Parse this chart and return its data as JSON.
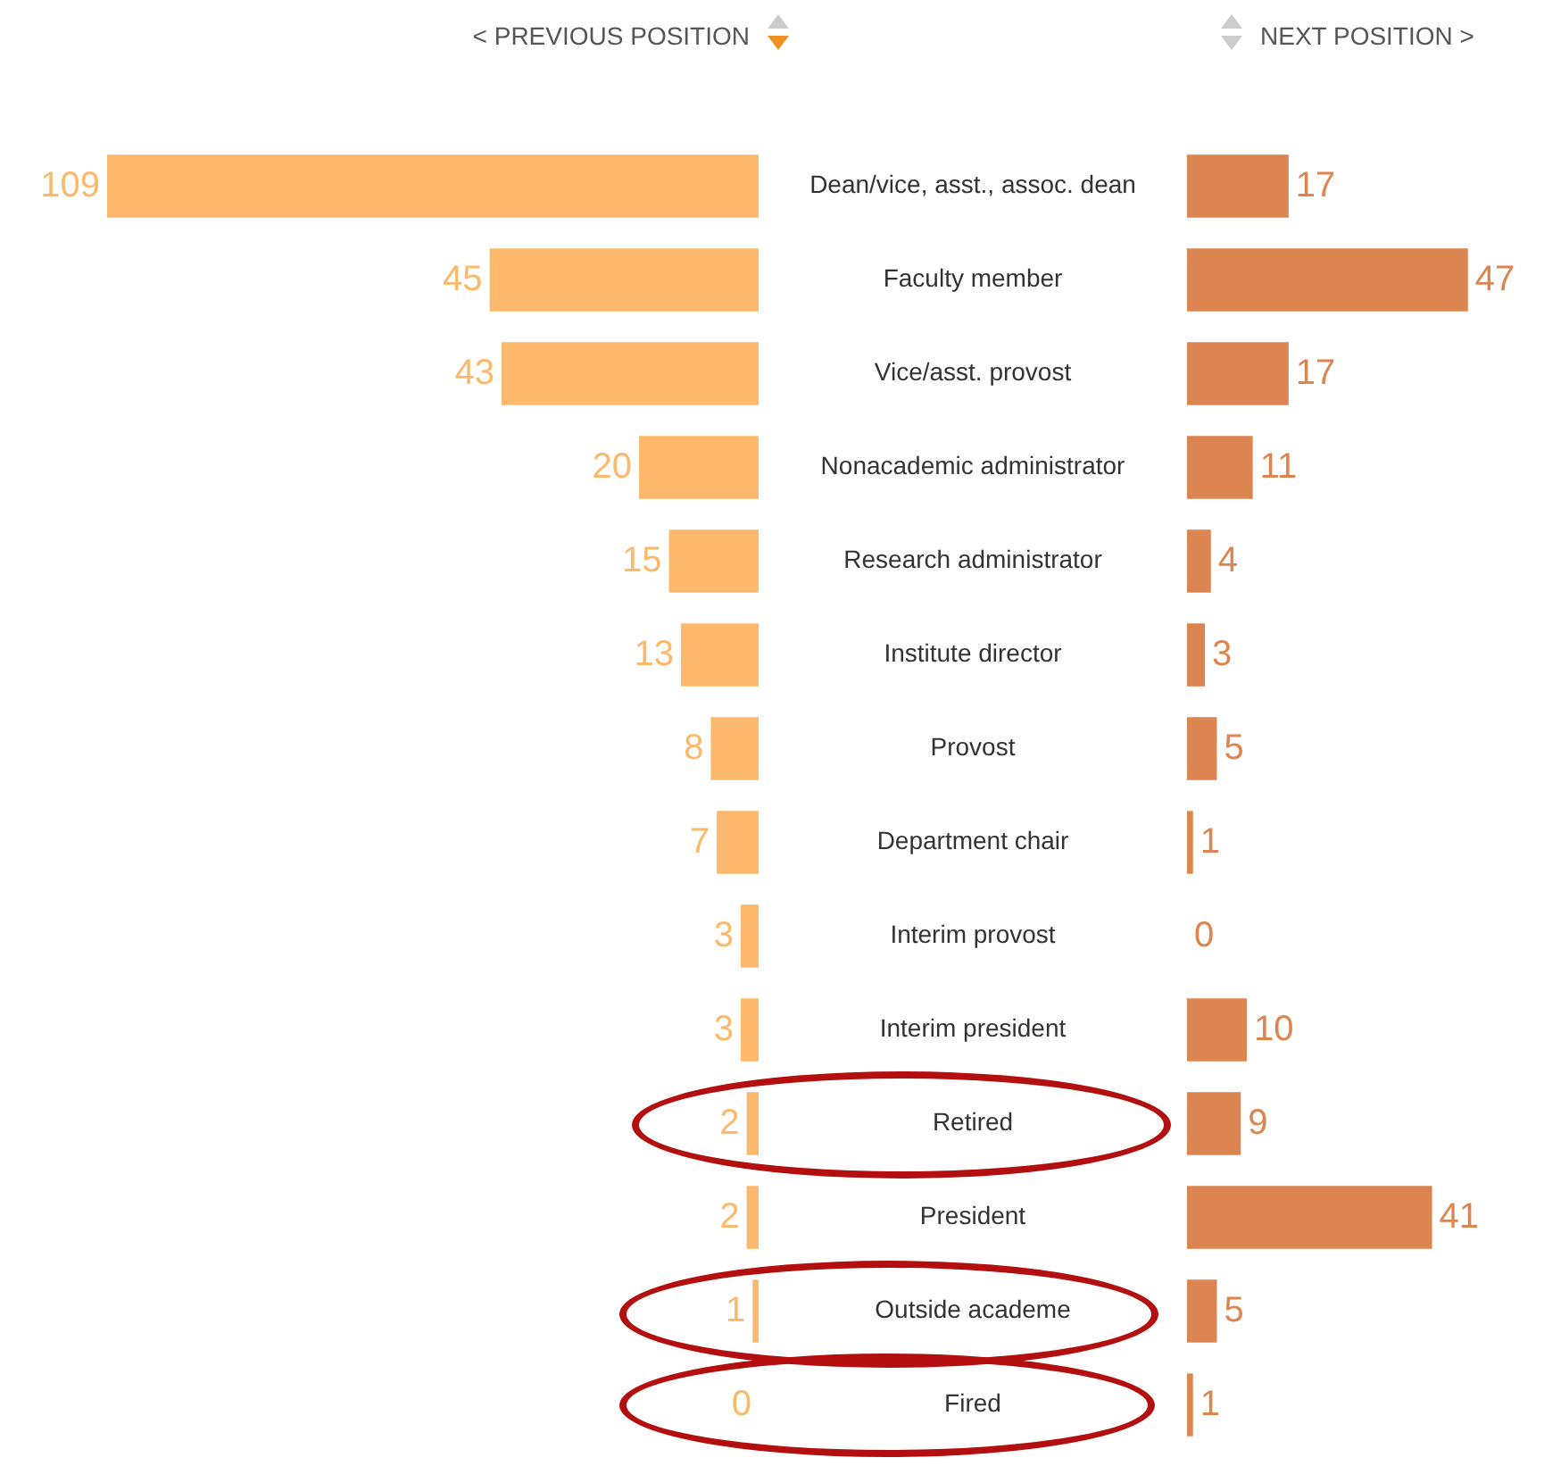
{
  "chart_data": [
    {
      "type": "bar",
      "orientation": "horizontal",
      "data_labels": true,
      "title": "< PREVIOUS POSITION",
      "color": "#fdb96b",
      "categories": [
        "Dean/vice, asst., assoc. dean",
        "Faculty member",
        "Vice/asst. provost",
        "Nonacademic administrator",
        "Research administrator",
        "Institute director",
        "Provost",
        "Department chair",
        "Interim provost",
        "Interim president",
        "Retired",
        "President",
        "Outside academe",
        "Fired"
      ],
      "values": [
        109,
        45,
        43,
        20,
        15,
        13,
        8,
        7,
        3,
        3,
        2,
        2,
        1,
        0
      ]
    },
    {
      "type": "bar",
      "orientation": "horizontal",
      "data_labels": true,
      "title": "NEXT POSITION >",
      "color": "#dc8550",
      "categories": [
        null,
        null,
        null,
        null,
        null,
        null,
        null,
        null,
        null,
        null,
        null,
        null,
        null,
        null
      ],
      "values": [
        17,
        47,
        17,
        11,
        4,
        3,
        5,
        1,
        0,
        10,
        9,
        41,
        5,
        1
      ]
    }
  ]
}
